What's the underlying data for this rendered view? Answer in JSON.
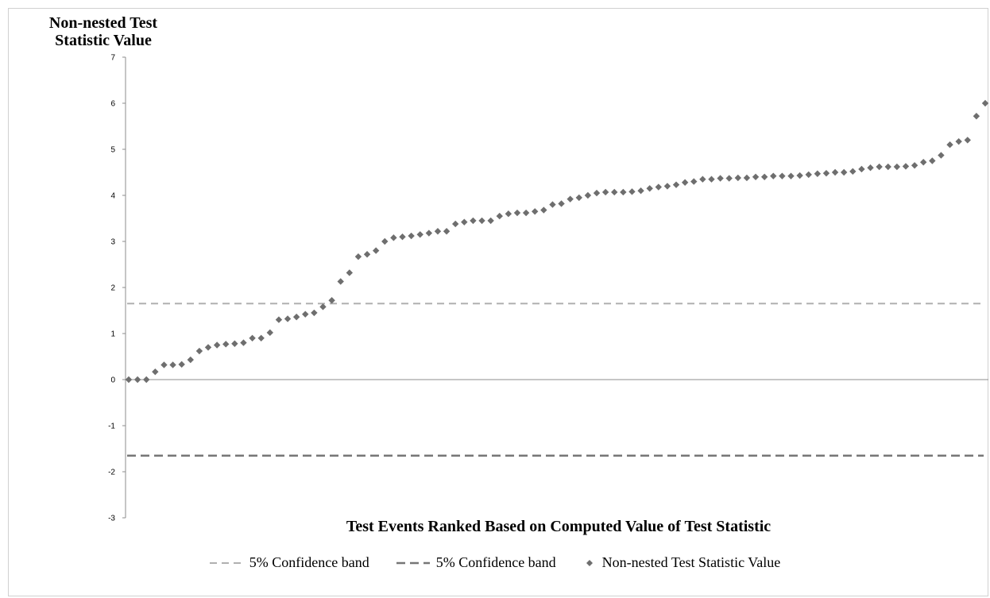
{
  "chart_data": {
    "type": "scatter",
    "ylabel": "Non-nested Test Statistic Value",
    "xlabel": "Test Events Ranked Based on Computed Value of Test Statistic",
    "ylim": [
      -3,
      7
    ],
    "yticks": [
      -3,
      -2,
      -1,
      0,
      1,
      2,
      3,
      4,
      5,
      6,
      7
    ],
    "grid": false,
    "legend_position": "bottom",
    "series": [
      {
        "name": "Non-nested Test Statistic Value",
        "kind": "markers",
        "color": "#6e6e6e",
        "values": [
          0,
          0,
          0,
          0.17,
          0.32,
          0.32,
          0.33,
          0.43,
          0.62,
          0.7,
          0.75,
          0.77,
          0.78,
          0.8,
          0.9,
          0.9,
          1.02,
          1.3,
          1.32,
          1.36,
          1.42,
          1.45,
          1.58,
          1.72,
          2.13,
          2.32,
          2.67,
          2.72,
          2.8,
          3.0,
          3.08,
          3.1,
          3.12,
          3.15,
          3.18,
          3.22,
          3.22,
          3.38,
          3.42,
          3.45,
          3.45,
          3.45,
          3.55,
          3.6,
          3.62,
          3.62,
          3.65,
          3.68,
          3.8,
          3.82,
          3.92,
          3.95,
          4.0,
          4.05,
          4.07,
          4.07,
          4.07,
          4.08,
          4.1,
          4.15,
          4.18,
          4.2,
          4.23,
          4.28,
          4.3,
          4.35,
          4.35,
          4.37,
          4.37,
          4.38,
          4.38,
          4.4,
          4.4,
          4.42,
          4.42,
          4.42,
          4.43,
          4.45,
          4.47,
          4.48,
          4.5,
          4.5,
          4.52,
          4.57,
          4.6,
          4.62,
          4.62,
          4.62,
          4.63,
          4.65,
          4.72,
          4.75,
          4.87,
          5.1,
          5.17,
          5.2,
          5.72,
          6.0
        ]
      },
      {
        "name": "5% Confidence band",
        "kind": "hline",
        "value": 1.65,
        "color": "#b0b0b0"
      },
      {
        "name": "5% Confidence band",
        "kind": "hline",
        "value": -1.65,
        "color": "#767676"
      }
    ]
  }
}
